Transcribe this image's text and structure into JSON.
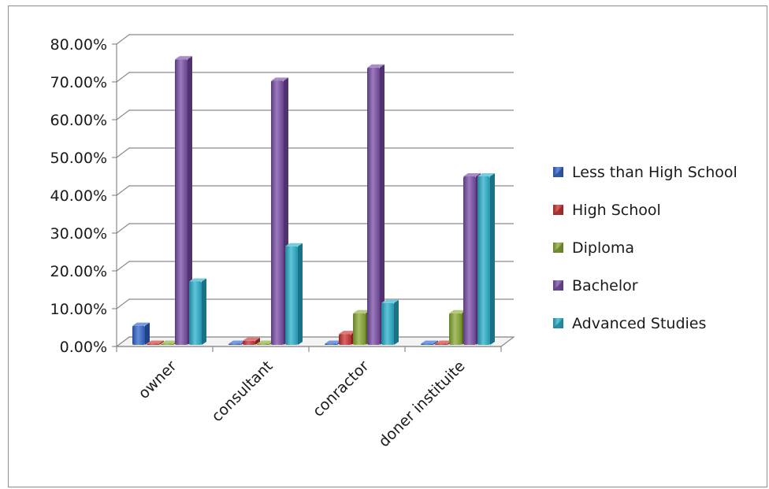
{
  "chart_data": {
    "type": "bar",
    "three_d": true,
    "categories": [
      "owner",
      "consultant",
      "conractor",
      "doner instituite"
    ],
    "series": [
      {
        "name": "Less than High School",
        "color": "#3366cc",
        "values": [
          5.5,
          0,
          0.6,
          0
        ]
      },
      {
        "name": "High School",
        "color": "#cc3333",
        "values": [
          0,
          1.5,
          3.3,
          0
        ]
      },
      {
        "name": "Diploma",
        "color": "#88aa33",
        "values": [
          0,
          0,
          8.8,
          8.8
        ]
      },
      {
        "name": "Bachelor",
        "color": "#7b4ea8",
        "values": [
          76.0,
          70.3,
          73.8,
          45.0
        ]
      },
      {
        "name": "Advanced Studies",
        "color": "#2ab0cc",
        "values": [
          17.2,
          26.5,
          11.5,
          45.0
        ]
      }
    ],
    "ylim": [
      0,
      80
    ],
    "yticks": [
      "0.00%",
      "10.00%",
      "20.00%",
      "30.00%",
      "40.00%",
      "50.00%",
      "60.00%",
      "70.00%",
      "80.00%"
    ],
    "grid": true,
    "legend_position": "right"
  }
}
